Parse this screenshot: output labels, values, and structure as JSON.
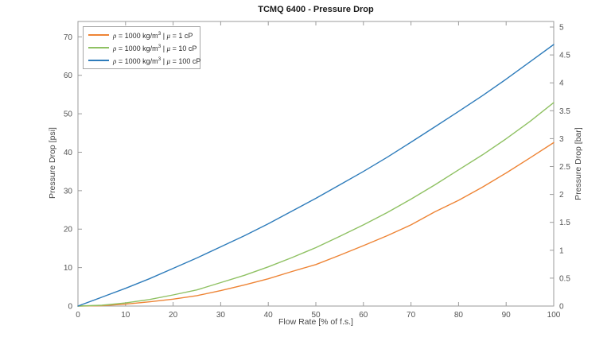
{
  "figure": {
    "title": "TCMQ 6400 - Pressure Drop",
    "background_color": "#ffffff",
    "axis_line_color": "#9b9b9b",
    "tick_label_color": "#545454"
  },
  "chart_data": {
    "type": "line",
    "title": "TCMQ 6400 - Pressure Drop",
    "xlabel": "Flow Rate [% of f.s.]",
    "ylabel_left": "Pressure Drop [psi]",
    "ylabel_right": "Pressure Drop [bar]",
    "xlim": [
      0,
      100
    ],
    "ylim_left": [
      0,
      74
    ],
    "ylim_right": [
      0,
      5.1
    ],
    "xticks": [
      "0",
      "10",
      "20",
      "30",
      "40",
      "50",
      "60",
      "70",
      "80",
      "90",
      "100"
    ],
    "yticks_left": [
      "0",
      "10",
      "20",
      "30",
      "40",
      "50",
      "60",
      "70"
    ],
    "yticks_right": [
      "0",
      "0.5",
      "1",
      "1.5",
      "2",
      "2.5",
      "3",
      "3.5",
      "4",
      "4.5",
      "5"
    ],
    "grid": false,
    "legend_position": "top-left",
    "x": [
      0,
      5,
      10,
      15,
      20,
      25,
      30,
      35,
      40,
      45,
      50,
      55,
      60,
      65,
      70,
      75,
      80,
      85,
      90,
      95,
      100
    ],
    "series": [
      {
        "name": "ρ = 1000 kg/m³ | μ = 1 cP",
        "color": "#EE8435",
        "unit": "psi",
        "values": [
          0,
          0.1,
          0.5,
          1.1,
          1.8,
          2.7,
          4.0,
          5.5,
          7.1,
          9.0,
          10.8,
          13.2,
          15.7,
          18.3,
          21.1,
          24.5,
          27.5,
          30.9,
          34.6,
          38.5,
          42.5
        ]
      },
      {
        "name": "ρ = 1000 kg/m³ | μ = 10 cP",
        "color": "#8FC163",
        "unit": "psi",
        "values": [
          0,
          0.2,
          0.8,
          1.7,
          2.9,
          4.2,
          6.1,
          8.0,
          10.2,
          12.6,
          15.2,
          18.1,
          21.1,
          24.3,
          27.8,
          31.5,
          35.4,
          39.3,
          43.5,
          48.0,
          52.9
        ]
      },
      {
        "name": "ρ = 1000 kg/m³ | μ = 100 cP",
        "color": "#2E7CBB",
        "unit": "psi",
        "values": [
          0,
          2.3,
          4.6,
          7.1,
          9.8,
          12.5,
          15.4,
          18.3,
          21.4,
          24.7,
          28.0,
          31.5,
          35.0,
          38.7,
          42.6,
          46.6,
          50.6,
          54.7,
          59.0,
          63.5,
          68.0
        ]
      }
    ],
    "right_axis_conversion": "bar = psi / 14.5038"
  },
  "legend": {
    "items": [
      {
        "greek1": "ρ",
        "part1": " = 1000 kg/m",
        "sup": "3",
        "part2": " | ",
        "greek2": "μ",
        "part3": " = 1 cP"
      },
      {
        "greek1": "ρ",
        "part1": " = 1000 kg/m",
        "sup": "3",
        "part2": " | ",
        "greek2": "μ",
        "part3": " = 10 cP"
      },
      {
        "greek1": "ρ",
        "part1": " = 1000 kg/m",
        "sup": "3",
        "part2": " | ",
        "greek2": "μ",
        "part3": " = 100 cP"
      }
    ]
  }
}
